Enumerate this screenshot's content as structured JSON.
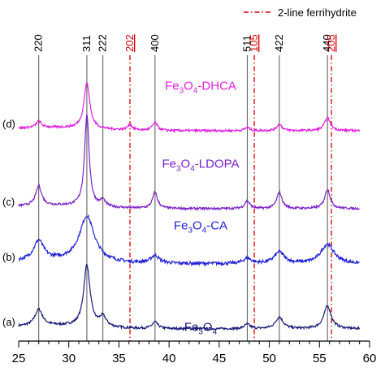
{
  "chart_data": {
    "type": "line",
    "xlabel": "",
    "ylabel": "",
    "xlim": [
      25,
      60
    ],
    "x_ticks": [
      25,
      30,
      35,
      40,
      45,
      50,
      55,
      60
    ],
    "grid": false,
    "legend_text": "2-line ferrihydrite",
    "legend_position": "top-right",
    "reference_lines": [
      {
        "label": "220",
        "x": 27.0,
        "style": "solid",
        "color": "#000000"
      },
      {
        "label": "311",
        "x": 31.8,
        "style": "solid",
        "color": "#000000"
      },
      {
        "label": "222",
        "x": 33.4,
        "style": "solid",
        "color": "#000000"
      },
      {
        "label": "202",
        "x": 36.1,
        "style": "dashdot",
        "color": "#d40000"
      },
      {
        "label": "400",
        "x": 38.6,
        "style": "solid",
        "color": "#000000"
      },
      {
        "label": "511",
        "x": 47.8,
        "style": "solid",
        "color": "#000000"
      },
      {
        "label": "105",
        "x": 48.5,
        "style": "dashdot",
        "color": "#d40000"
      },
      {
        "label": "422",
        "x": 51.0,
        "style": "solid",
        "color": "#000000"
      },
      {
        "label": "440",
        "x": 55.8,
        "style": "solid",
        "color": "#000000"
      },
      {
        "label": "205",
        "x": 56.2,
        "style": "dashdot",
        "color": "#d40000"
      }
    ],
    "series": [
      {
        "tag": "(a)",
        "name": "Fe3O4",
        "label_main": "Fe",
        "label_sub1": "3",
        "label_mid": "O",
        "label_sub2": "4",
        "label_suffix": "",
        "color": "#1a1a7a",
        "baseline": 0.0,
        "peaks": [
          [
            27.0,
            0.25,
            0.45
          ],
          [
            31.8,
            0.95,
            0.38
          ],
          [
            33.4,
            0.15,
            0.4
          ],
          [
            38.6,
            0.1,
            0.35
          ],
          [
            47.8,
            0.07,
            0.35
          ],
          [
            51.0,
            0.18,
            0.45
          ],
          [
            55.8,
            0.35,
            0.45
          ]
        ]
      },
      {
        "tag": "(b)",
        "name": "Fe3O4-CA",
        "label_main": "Fe",
        "label_sub1": "3",
        "label_mid": "O",
        "label_sub2": "4",
        "label_suffix": "-CA",
        "color": "#2222d8",
        "baseline": 1.0,
        "peaks": [
          [
            27.0,
            0.3,
            0.6
          ],
          [
            31.8,
            0.7,
            0.9
          ],
          [
            38.6,
            0.12,
            0.5
          ],
          [
            47.8,
            0.08,
            0.5
          ],
          [
            51.0,
            0.18,
            0.6
          ],
          [
            55.8,
            0.3,
            0.8
          ]
        ]
      },
      {
        "tag": "(c)",
        "name": "Fe3O4-LDOPA",
        "label_main": "Fe",
        "label_sub1": "3",
        "label_mid": "O",
        "label_sub2": "4",
        "label_suffix": "-LDOPA",
        "color": "#7a22c8",
        "baseline": 1.85,
        "peaks": [
          [
            27.0,
            0.3,
            0.35
          ],
          [
            31.8,
            1.4,
            0.28
          ],
          [
            33.4,
            0.1,
            0.3
          ],
          [
            38.6,
            0.25,
            0.3
          ],
          [
            47.8,
            0.12,
            0.3
          ],
          [
            51.0,
            0.25,
            0.32
          ],
          [
            55.8,
            0.3,
            0.33
          ]
        ]
      },
      {
        "tag": "(d)",
        "name": "Fe3O4-DHCA",
        "label_main": "Fe",
        "label_sub1": "3",
        "label_mid": "O",
        "label_sub2": "4",
        "label_suffix": "-DHCA",
        "color": "#e020e0",
        "baseline": 3.05,
        "peaks": [
          [
            27.0,
            0.1,
            0.3
          ],
          [
            31.8,
            0.7,
            0.35
          ],
          [
            36.1,
            0.08,
            0.3
          ],
          [
            38.6,
            0.12,
            0.3
          ],
          [
            47.8,
            0.05,
            0.3
          ],
          [
            51.0,
            0.1,
            0.3
          ],
          [
            55.8,
            0.2,
            0.35
          ]
        ]
      }
    ]
  }
}
